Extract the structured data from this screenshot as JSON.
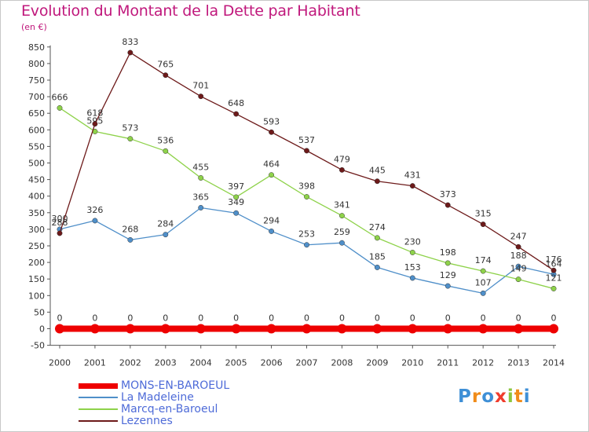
{
  "title": "Evolution du Montant de la Dette par Habitant",
  "subtitle": "(en €)",
  "logo": {
    "text": "Proxiti",
    "letter_colors": [
      "#3e8fd6",
      "#f08c1a",
      "#3e8fd6",
      "#f03c2c",
      "#8cc63f",
      "#f08c1a",
      "#3e8fd6"
    ]
  },
  "chart_data": {
    "type": "line",
    "x": [
      "2000",
      "2001",
      "2002",
      "2003",
      "2004",
      "2005",
      "2006",
      "2007",
      "2008",
      "2009",
      "2010",
      "2011",
      "2012",
      "2013",
      "2014"
    ],
    "ylim": [
      -50,
      850
    ],
    "yticks": [
      -50,
      0,
      50,
      100,
      150,
      200,
      250,
      300,
      350,
      400,
      450,
      500,
      550,
      600,
      650,
      700,
      750,
      800,
      850
    ],
    "grid": false,
    "legend": "bottom",
    "series": [
      {
        "name": "MONS-EN-BAROEUL",
        "color": "#ee0000",
        "values": [
          0,
          0,
          0,
          0,
          0,
          0,
          0,
          0,
          0,
          0,
          0,
          0,
          0,
          0,
          0
        ]
      },
      {
        "name": "La Madeleine",
        "color": "#4f8fc9",
        "values": [
          300,
          326,
          268,
          284,
          365,
          349,
          294,
          253,
          259,
          185,
          153,
          129,
          107,
          188,
          164
        ]
      },
      {
        "name": "Marcq-en-Baroeul",
        "color": "#8ed24a",
        "values": [
          666,
          595,
          573,
          536,
          455,
          397,
          464,
          398,
          341,
          274,
          230,
          198,
          174,
          149,
          121
        ]
      },
      {
        "name": "Lezennes",
        "color": "#6d1a1a",
        "values": [
          288,
          618,
          833,
          765,
          701,
          648,
          593,
          537,
          479,
          445,
          431,
          373,
          315,
          247,
          176
        ]
      }
    ]
  }
}
